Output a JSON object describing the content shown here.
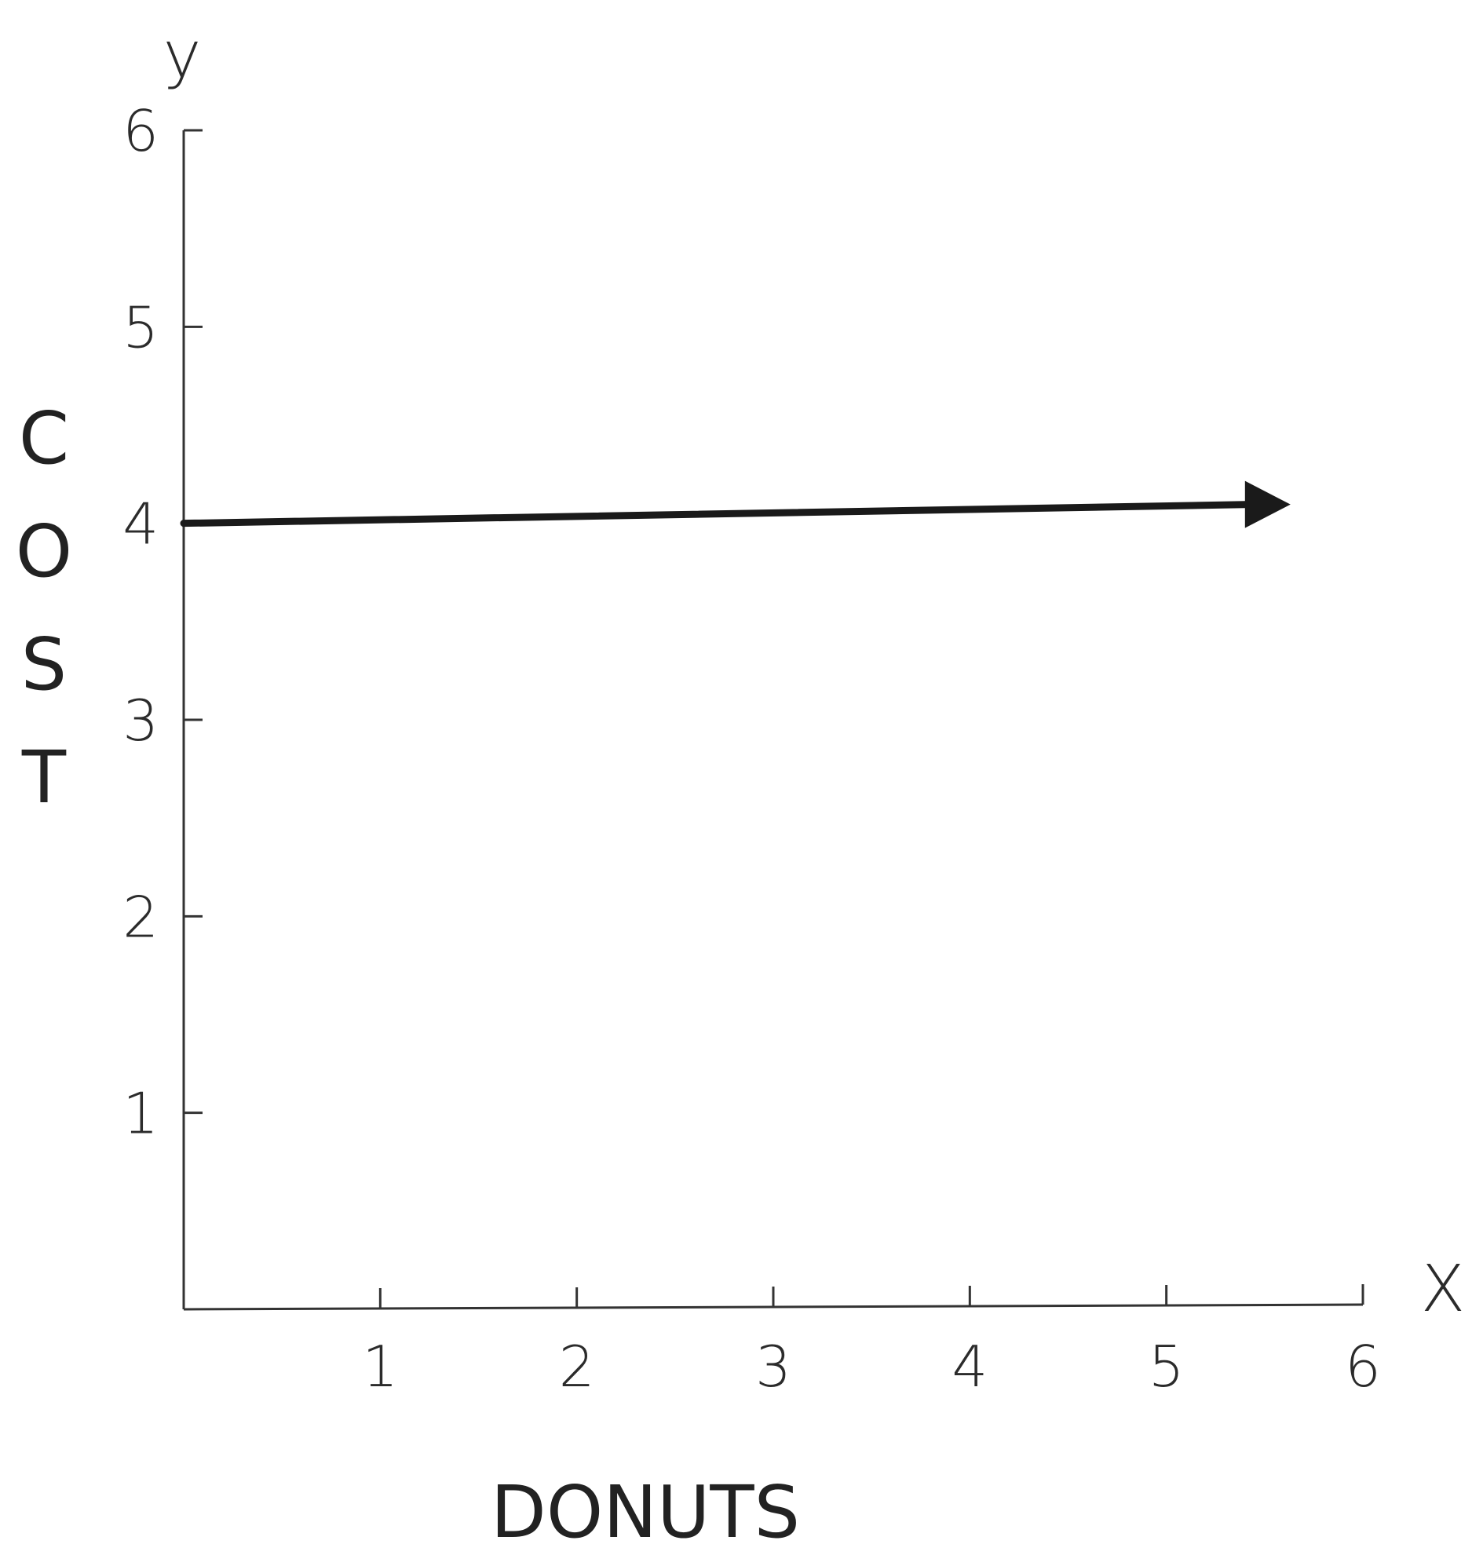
{
  "chart_data": {
    "type": "line",
    "xlabel": "DONUTS",
    "ylabel": "COST",
    "x_axis_letter": "X",
    "y_axis_letter": "y",
    "xlim": [
      0,
      6
    ],
    "ylim": [
      0,
      6
    ],
    "x_ticks": [
      "1",
      "2",
      "3",
      "4",
      "5",
      "6"
    ],
    "y_ticks": [
      "1",
      "2",
      "3",
      "4",
      "5",
      "6"
    ],
    "grid": false,
    "series": [
      {
        "x": [
          0,
          5.4
        ],
        "y": [
          4,
          4
        ],
        "arrow_end": true,
        "color": "#1a1a1a"
      }
    ]
  }
}
